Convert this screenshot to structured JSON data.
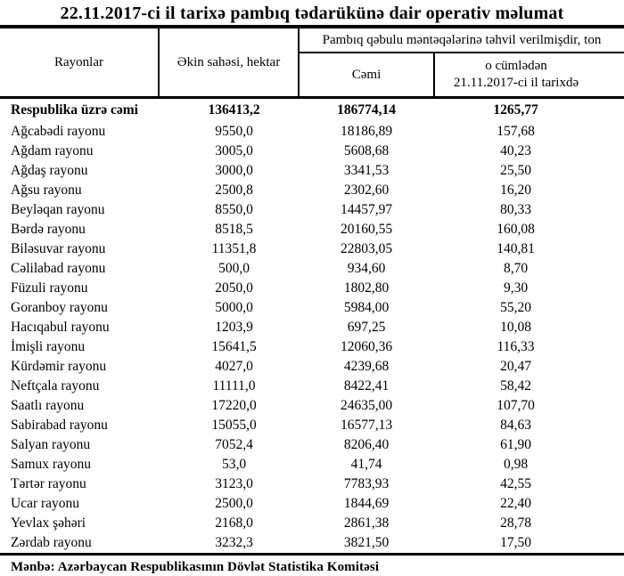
{
  "page": {
    "title": "22.11.2017-ci il tarixə pambıq tədarükünə dair operativ məlumat",
    "source": "Mənbə: Azərbaycan Respublikasının Dövlət Statistika Komitəsi"
  },
  "colors": {
    "text": "#000000",
    "background": "#ffffff",
    "border": "#000000"
  },
  "table": {
    "col_headers": {
      "rayonlar": "Rayonlar",
      "ekin_sahesi": "Əkin sahəsi, hektar",
      "group": "Pambıq qəbulu məntəqələrinə təhvil verilmişdir, ton",
      "cemi": "Cəmi",
      "o_cumleden_line1": "o cümlədən",
      "o_cumleden_line2": "21.11.2017-ci il tarixdə"
    },
    "total_row": {
      "name": "Respublika üzrə cəmi",
      "area": "136413,2",
      "total": "186774,14",
      "daily": "1265,77"
    },
    "rows": [
      {
        "name": "Ağcabədi rayonu",
        "area": "9550,0",
        "total": "18186,89",
        "daily": "157,68"
      },
      {
        "name": "Ağdam rayonu",
        "area": "3005,0",
        "total": "5608,68",
        "daily": "40,23"
      },
      {
        "name": "Ağdaş rayonu",
        "area": "3000,0",
        "total": "3341,53",
        "daily": "25,50"
      },
      {
        "name": "Ağsu rayonu",
        "area": "2500,8",
        "total": "2302,60",
        "daily": "16,20"
      },
      {
        "name": "Beyləqan rayonu",
        "area": "8550,0",
        "total": "14457,97",
        "daily": "80,33"
      },
      {
        "name": "Bərdə rayonu",
        "area": "8518,5",
        "total": "20160,55",
        "daily": "160,08"
      },
      {
        "name": "Biləsuvar rayonu",
        "area": "11351,8",
        "total": "22803,05",
        "daily": "140,81"
      },
      {
        "name": "Cəlilabad rayonu",
        "area": "500,0",
        "total": "934,60",
        "daily": "8,70"
      },
      {
        "name": "Füzuli rayonu",
        "area": "2050,0",
        "total": "1802,80",
        "daily": "9,30"
      },
      {
        "name": "Goranboy rayonu",
        "area": "5000,0",
        "total": "5984,00",
        "daily": "55,20"
      },
      {
        "name": "Hacıqabul rayonu",
        "area": "1203,9",
        "total": "697,25",
        "daily": "10,08"
      },
      {
        "name": "İmişli rayonu",
        "area": "15641,5",
        "total": "12060,36",
        "daily": "116,33"
      },
      {
        "name": "Kürdəmir rayonu",
        "area": "4027,0",
        "total": "4239,68",
        "daily": "20,47"
      },
      {
        "name": "Neftçala rayonu",
        "area": "11111,0",
        "total": "8422,41",
        "daily": "58,42"
      },
      {
        "name": "Saatlı rayonu",
        "area": "17220,0",
        "total": "24635,00",
        "daily": "107,70"
      },
      {
        "name": "Sabirabad rayonu",
        "area": "15055,0",
        "total": "16577,13",
        "daily": "84,63"
      },
      {
        "name": "Salyan rayonu",
        "area": "7052,4",
        "total": "8206,40",
        "daily": "61,90"
      },
      {
        "name": "Samux rayonu",
        "area": "53,0",
        "total": "41,74",
        "daily": "0,98"
      },
      {
        "name": "Tərtər rayonu",
        "area": "3123,0",
        "total": "7783,93",
        "daily": "42,55"
      },
      {
        "name": "Ucar rayonu",
        "area": "2500,0",
        "total": "1844,69",
        "daily": "22,40"
      },
      {
        "name": "Yevlax şəhəri",
        "area": "2168,0",
        "total": "2861,38",
        "daily": "28,78"
      },
      {
        "name": "Zərdab rayonu",
        "area": "3232,3",
        "total": "3821,50",
        "daily": "17,50"
      }
    ]
  }
}
